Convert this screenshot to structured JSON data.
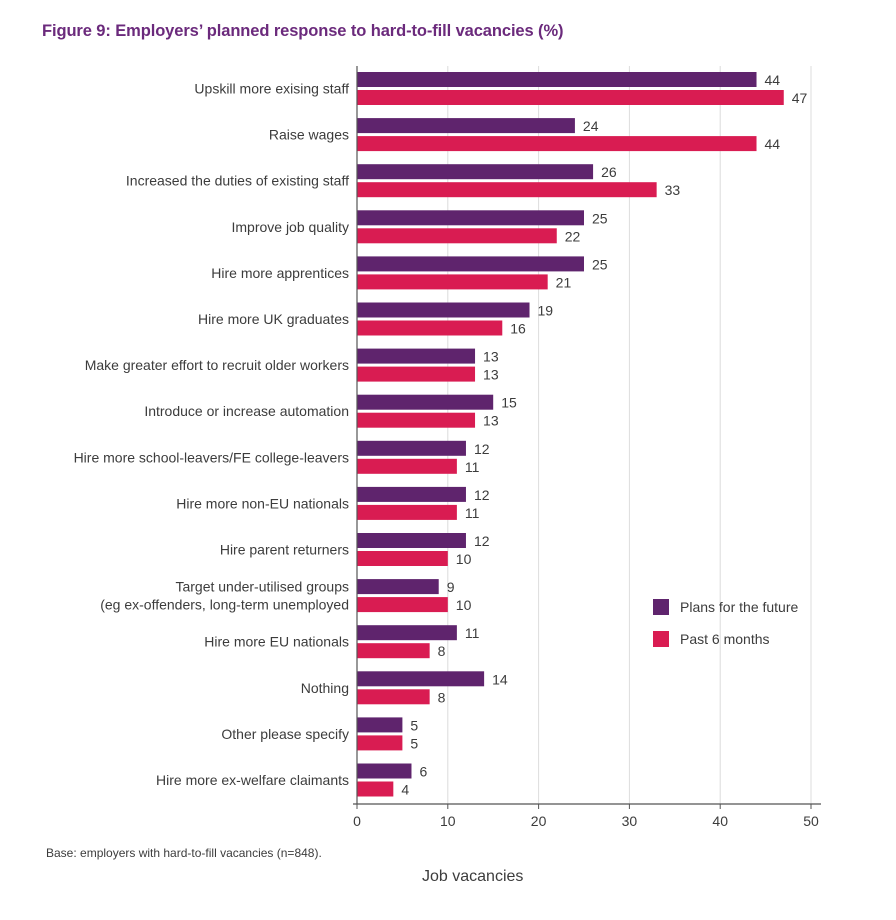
{
  "chart_data": {
    "type": "bar",
    "orientation": "horizontal",
    "title": "Figure 9: Employers’ planned response to hard-to-fill vacancies (%)",
    "xlabel": "Job vacancies",
    "ylabel": "",
    "xlim": [
      0,
      50
    ],
    "xticks": [
      0,
      10,
      20,
      30,
      40,
      50
    ],
    "grid": true,
    "legend_position": "right",
    "note": "Base: employers with hard-to-fill vacancies (n=848).",
    "categories": [
      [
        "Upskill more exising staff"
      ],
      [
        "Raise wages"
      ],
      [
        "Increased the duties of existing staff"
      ],
      [
        "Improve job quality"
      ],
      [
        "Hire more apprentices"
      ],
      [
        "Hire more UK graduates"
      ],
      [
        "Make greater effort to recruit older workers"
      ],
      [
        "Introduce or increase automation"
      ],
      [
        "Hire more school-leavers/FE college-leavers"
      ],
      [
        "Hire more non-EU nationals"
      ],
      [
        "Hire parent returners"
      ],
      [
        "Target under-utilised groups",
        "(eg ex-offenders, long-term unemployed"
      ],
      [
        "Hire more EU nationals"
      ],
      [
        "Nothing"
      ],
      [
        "Other please specify"
      ],
      [
        "Hire more ex-welfare claimants"
      ]
    ],
    "series": [
      {
        "name": "Plans for the future",
        "color": "#5f246d",
        "values": [
          44,
          24,
          26,
          25,
          25,
          19,
          13,
          15,
          12,
          12,
          12,
          9,
          11,
          14,
          5,
          6
        ]
      },
      {
        "name": "Past 6 months",
        "color": "#d91c52",
        "values": [
          47,
          44,
          33,
          22,
          21,
          16,
          13,
          13,
          11,
          11,
          10,
          10,
          8,
          8,
          5,
          4
        ]
      }
    ]
  },
  "colors": {
    "title": "#6b2a7c",
    "text": "#3c3c3c",
    "grid": "#dcdcdc",
    "axis": "#555555"
  }
}
